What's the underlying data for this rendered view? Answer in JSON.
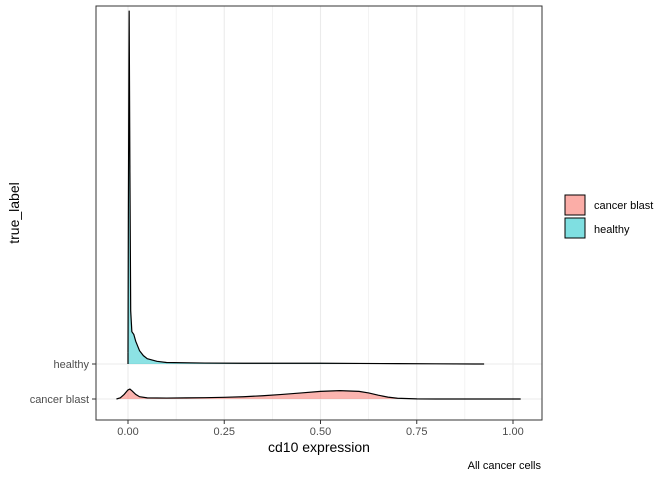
{
  "chart_data": {
    "type": "area",
    "subtype": "ridgeline-density",
    "title": "",
    "xlabel": "cd10 expression",
    "ylabel": "true_label",
    "caption": "All cancer cells",
    "xlim": [
      -0.09,
      1.05
    ],
    "x_ticks": [
      0.0,
      0.25,
      0.5,
      0.75,
      1.0
    ],
    "x_tick_labels": [
      "0.00",
      "0.25",
      "0.50",
      "0.75",
      "1.00"
    ],
    "categories": [
      "cancer blast",
      "healthy"
    ],
    "grid": true,
    "legend": {
      "position": "right",
      "entries": [
        {
          "label": "cancer blast",
          "color": "#F8766D"
        },
        {
          "label": "healthy",
          "color": "#00BFC4"
        }
      ]
    },
    "series": [
      {
        "name": "cancer blast",
        "color": "#F8766D",
        "baseline": 0,
        "x": [
          -0.03,
          -0.02,
          -0.01,
          0.0,
          0.005,
          0.01,
          0.02,
          0.03,
          0.05,
          0.1,
          0.15,
          0.2,
          0.25,
          0.3,
          0.35,
          0.4,
          0.45,
          0.5,
          0.55,
          0.6,
          0.625,
          0.65,
          0.675,
          0.7,
          0.75,
          0.8,
          0.85,
          0.9,
          0.95,
          1.0,
          1.02
        ],
        "density": [
          0.0,
          0.03,
          0.12,
          0.24,
          0.26,
          0.22,
          0.12,
          0.06,
          0.03,
          0.025,
          0.03,
          0.035,
          0.045,
          0.06,
          0.085,
          0.12,
          0.16,
          0.2,
          0.22,
          0.2,
          0.16,
          0.1,
          0.05,
          0.02,
          0.004,
          0.0,
          0.0,
          0.0,
          0.0,
          0.0,
          0.0
        ]
      },
      {
        "name": "healthy",
        "color": "#00BFC4",
        "baseline": 1,
        "x": [
          0.0,
          0.001,
          0.003,
          0.005,
          0.007,
          0.01,
          0.015,
          0.02,
          0.03,
          0.04,
          0.05,
          0.075,
          0.1,
          0.2,
          0.3,
          0.4,
          0.5,
          0.6,
          0.7,
          0.8,
          0.9,
          0.925
        ],
        "density": [
          0.3,
          4.0,
          9.3,
          5.0,
          1.4,
          0.85,
          0.78,
          0.6,
          0.35,
          0.22,
          0.14,
          0.07,
          0.04,
          0.025,
          0.02,
          0.02,
          0.02,
          0.015,
          0.01,
          0.005,
          0.0,
          0.0
        ]
      }
    ]
  }
}
